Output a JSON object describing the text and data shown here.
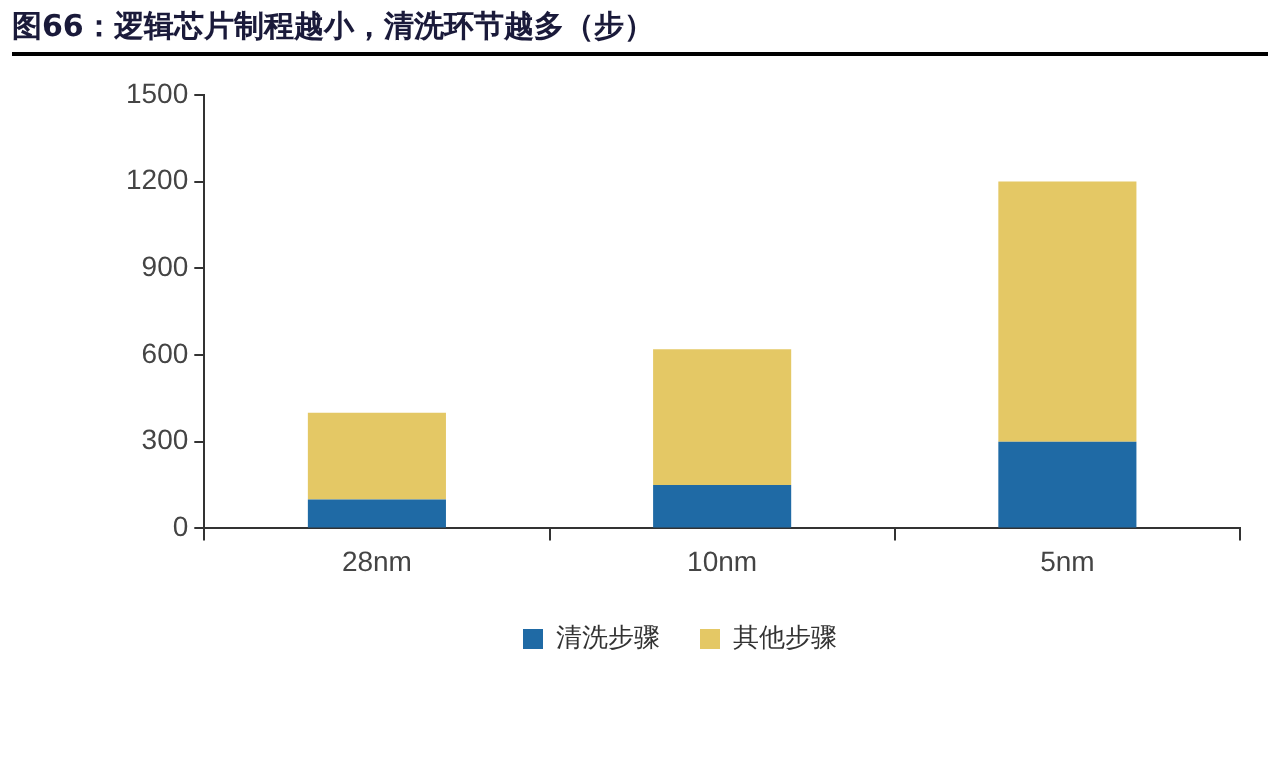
{
  "chart_data": {
    "type": "bar",
    "title": "图66：逻辑芯片制程越小，清洗环节越多（步）",
    "categories": [
      "28nm",
      "10nm",
      "5nm"
    ],
    "stacked": true,
    "series": [
      {
        "name": "清洗步骤",
        "color": "#1f6aa5",
        "values": [
          100,
          150,
          300
        ]
      },
      {
        "name": "其他步骤",
        "color": "#e4c865",
        "values": [
          300,
          470,
          900
        ]
      }
    ],
    "ylim": [
      0,
      1500
    ],
    "yticks": [
      0,
      300,
      600,
      900,
      1200,
      1500
    ],
    "grid": false,
    "legend": "bottom"
  }
}
